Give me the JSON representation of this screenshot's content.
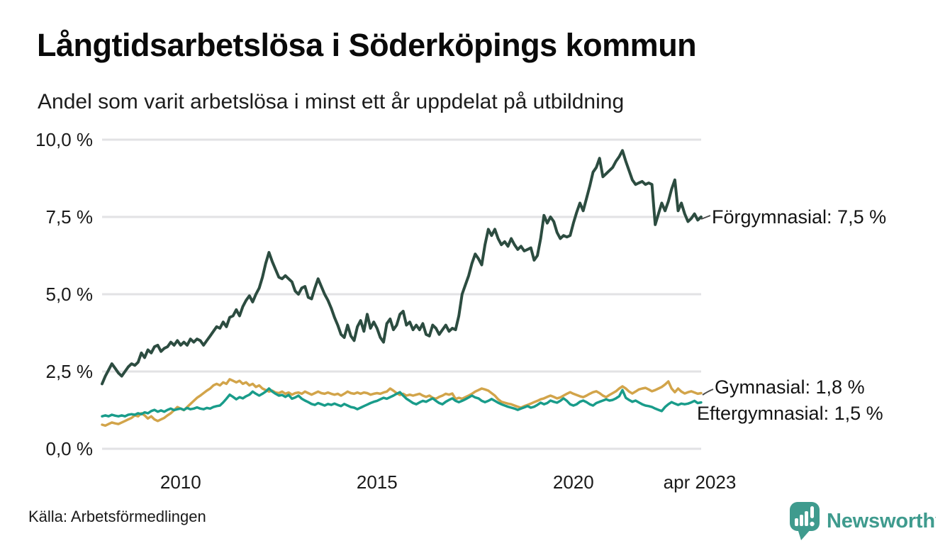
{
  "header": {
    "title": "Långtidsarbetslösa i Söderköpings kommun",
    "subtitle": "Andel som varit arbetslösa i minst ett år uppdelat på utbildning"
  },
  "footer": {
    "source": "Källa: Arbetsförmedlingen",
    "brand_name": "Newsworthy",
    "brand_color": "#3f9b8e",
    "brand_icon": "bar-chart-speech-bubble-icon"
  },
  "chart_data": {
    "type": "line",
    "title": "Långtidsarbetslösa i Söderköpings kommun",
    "subtitle": "Andel som varit arbetslösa i minst ett år uppdelat på utbildning",
    "unit": "%",
    "x_start_year": 2008.0,
    "x_step_months": 1,
    "xlim": [
      2008.0,
      2023.33
    ],
    "ylim": [
      0,
      10
    ],
    "grid": "horizontal",
    "legend_position": "right-end-labels",
    "x_ticks": [
      {
        "value": 2010.0,
        "label": "2010"
      },
      {
        "value": 2015.0,
        "label": "2015"
      },
      {
        "value": 2020.0,
        "label": "2020"
      },
      {
        "value": 2023.29,
        "label": "apr 2023"
      }
    ],
    "y_ticks": [
      {
        "value": 0,
        "label": "0,0 %"
      },
      {
        "value": 2.5,
        "label": "2,5 %"
      },
      {
        "value": 5,
        "label": "5,0 %"
      },
      {
        "value": 7.5,
        "label": "7,5 %"
      },
      {
        "value": 10,
        "label": "10,0 %"
      }
    ],
    "series": [
      {
        "name": "Förgymnasial",
        "end_label": "Förgymnasial: 7,5 %",
        "end_value_label": "7,5 %",
        "color": "#2c4c40",
        "stroke_width": 4,
        "values": [
          2.1,
          2.35,
          2.55,
          2.75,
          2.6,
          2.45,
          2.35,
          2.5,
          2.65,
          2.75,
          2.7,
          2.8,
          3.1,
          2.95,
          3.2,
          3.1,
          3.3,
          3.35,
          3.15,
          3.25,
          3.3,
          3.45,
          3.35,
          3.5,
          3.35,
          3.45,
          3.35,
          3.55,
          3.45,
          3.55,
          3.5,
          3.35,
          3.5,
          3.65,
          3.8,
          3.95,
          3.9,
          4.1,
          3.95,
          4.25,
          4.3,
          4.5,
          4.3,
          4.6,
          4.8,
          4.95,
          4.75,
          5.0,
          5.2,
          5.55,
          6.0,
          6.35,
          6.05,
          5.8,
          5.55,
          5.5,
          5.6,
          5.5,
          5.4,
          5.1,
          5.0,
          5.2,
          5.25,
          4.9,
          4.85,
          5.2,
          5.5,
          5.25,
          5.0,
          4.8,
          4.55,
          4.25,
          4.0,
          3.7,
          3.6,
          4.0,
          3.65,
          3.5,
          3.95,
          4.15,
          3.8,
          4.35,
          3.9,
          4.1,
          3.9,
          3.6,
          3.45,
          4.05,
          4.2,
          3.85,
          4.0,
          4.35,
          4.45,
          4.0,
          4.1,
          3.85,
          4.0,
          3.85,
          4.05,
          3.7,
          3.65,
          4.0,
          3.9,
          3.7,
          3.85,
          4.0,
          3.8,
          3.9,
          3.85,
          4.3,
          5.0,
          5.3,
          5.6,
          6.0,
          6.3,
          6.15,
          5.95,
          6.6,
          7.1,
          6.9,
          7.1,
          6.8,
          6.6,
          6.7,
          6.55,
          6.8,
          6.6,
          6.45,
          6.55,
          6.4,
          6.45,
          6.5,
          6.1,
          6.25,
          6.8,
          7.55,
          7.3,
          7.5,
          7.35,
          7.0,
          6.8,
          6.9,
          6.85,
          6.9,
          7.3,
          7.65,
          7.95,
          7.7,
          8.1,
          8.5,
          8.95,
          9.1,
          9.4,
          8.8,
          8.9,
          9.0,
          9.1,
          9.3,
          9.45,
          9.65,
          9.3,
          9.0,
          8.7,
          8.55,
          8.6,
          8.65,
          8.55,
          8.6,
          8.55,
          7.25,
          7.6,
          7.95,
          7.7,
          8.0,
          8.4,
          8.7,
          7.7,
          7.95,
          7.6,
          7.35,
          7.45,
          7.6,
          7.4,
          7.5
        ]
      },
      {
        "name": "Gymnasial",
        "end_label": "Gymnasial: 1,8 %",
        "end_value_label": "1,8 %",
        "color": "#d2a44a",
        "stroke_width": 3.5,
        "values": [
          0.78,
          0.75,
          0.8,
          0.85,
          0.82,
          0.8,
          0.85,
          0.9,
          0.95,
          1.0,
          1.08,
          1.05,
          1.15,
          1.08,
          0.98,
          1.05,
          0.95,
          0.9,
          0.95,
          1.0,
          1.08,
          1.15,
          1.25,
          1.35,
          1.3,
          1.25,
          1.35,
          1.45,
          1.55,
          1.65,
          1.72,
          1.8,
          1.88,
          1.95,
          2.05,
          2.1,
          2.05,
          2.15,
          2.1,
          2.25,
          2.2,
          2.15,
          2.2,
          2.1,
          2.15,
          2.05,
          2.1,
          2.0,
          2.05,
          1.95,
          1.9,
          1.85,
          1.88,
          1.82,
          1.8,
          1.85,
          1.78,
          1.82,
          1.75,
          1.8,
          1.82,
          1.78,
          1.85,
          1.8,
          1.75,
          1.8,
          1.85,
          1.8,
          1.78,
          1.82,
          1.78,
          1.75,
          1.78,
          1.72,
          1.78,
          1.85,
          1.8,
          1.78,
          1.82,
          1.78,
          1.82,
          1.8,
          1.75,
          1.78,
          1.8,
          1.78,
          1.82,
          1.85,
          1.95,
          1.88,
          1.8,
          1.74,
          1.78,
          1.72,
          1.75,
          1.72,
          1.75,
          1.78,
          1.72,
          1.68,
          1.72,
          1.65,
          1.62,
          1.68,
          1.72,
          1.78,
          1.75,
          1.79,
          1.61,
          1.65,
          1.62,
          1.67,
          1.72,
          1.78,
          1.85,
          1.9,
          1.95,
          1.92,
          1.88,
          1.8,
          1.72,
          1.6,
          1.52,
          1.49,
          1.46,
          1.44,
          1.4,
          1.36,
          1.33,
          1.38,
          1.42,
          1.46,
          1.51,
          1.55,
          1.6,
          1.63,
          1.68,
          1.72,
          1.68,
          1.63,
          1.66,
          1.72,
          1.78,
          1.83,
          1.78,
          1.74,
          1.7,
          1.67,
          1.72,
          1.78,
          1.83,
          1.86,
          1.8,
          1.72,
          1.67,
          1.74,
          1.8,
          1.86,
          1.95,
          2.02,
          1.95,
          1.85,
          1.79,
          1.85,
          1.92,
          1.95,
          1.97,
          1.92,
          1.86,
          1.9,
          1.95,
          2.0,
          2.08,
          2.18,
          1.95,
          1.83,
          1.95,
          1.85,
          1.79,
          1.83,
          1.86,
          1.82,
          1.78,
          1.8
        ]
      },
      {
        "name": "Eftergymnasial",
        "end_label": "Eftergymnasial: 1,5 %",
        "end_value_label": "1,5 %",
        "color": "#199c8a",
        "stroke_width": 3.5,
        "values": [
          1.05,
          1.08,
          1.05,
          1.1,
          1.07,
          1.05,
          1.08,
          1.05,
          1.1,
          1.12,
          1.1,
          1.15,
          1.12,
          1.18,
          1.15,
          1.22,
          1.26,
          1.2,
          1.24,
          1.2,
          1.26,
          1.3,
          1.25,
          1.28,
          1.3,
          1.26,
          1.32,
          1.28,
          1.3,
          1.34,
          1.3,
          1.28,
          1.32,
          1.3,
          1.35,
          1.38,
          1.4,
          1.5,
          1.62,
          1.75,
          1.68,
          1.6,
          1.67,
          1.63,
          1.7,
          1.75,
          1.85,
          1.78,
          1.72,
          1.78,
          1.85,
          1.95,
          1.85,
          1.78,
          1.72,
          1.74,
          1.68,
          1.74,
          1.62,
          1.66,
          1.72,
          1.62,
          1.56,
          1.51,
          1.45,
          1.42,
          1.48,
          1.44,
          1.4,
          1.45,
          1.42,
          1.46,
          1.42,
          1.38,
          1.45,
          1.4,
          1.35,
          1.33,
          1.28,
          1.33,
          1.38,
          1.43,
          1.48,
          1.52,
          1.55,
          1.6,
          1.65,
          1.62,
          1.67,
          1.72,
          1.78,
          1.83,
          1.72,
          1.62,
          1.55,
          1.48,
          1.44,
          1.5,
          1.55,
          1.52,
          1.58,
          1.63,
          1.55,
          1.48,
          1.44,
          1.52,
          1.58,
          1.63,
          1.55,
          1.51,
          1.55,
          1.6,
          1.66,
          1.72,
          1.66,
          1.63,
          1.55,
          1.51,
          1.55,
          1.61,
          1.55,
          1.49,
          1.44,
          1.4,
          1.36,
          1.33,
          1.3,
          1.26,
          1.3,
          1.34,
          1.38,
          1.33,
          1.36,
          1.42,
          1.49,
          1.44,
          1.48,
          1.56,
          1.52,
          1.49,
          1.55,
          1.63,
          1.55,
          1.44,
          1.4,
          1.44,
          1.52,
          1.56,
          1.51,
          1.44,
          1.4,
          1.48,
          1.52,
          1.56,
          1.6,
          1.56,
          1.58,
          1.63,
          1.7,
          1.9,
          1.65,
          1.58,
          1.52,
          1.56,
          1.5,
          1.44,
          1.4,
          1.38,
          1.35,
          1.3,
          1.26,
          1.22,
          1.35,
          1.44,
          1.51,
          1.46,
          1.42,
          1.46,
          1.44,
          1.46,
          1.5,
          1.55,
          1.48,
          1.5
        ]
      }
    ],
    "source": "Källa: Arbetsförmedlingen"
  }
}
